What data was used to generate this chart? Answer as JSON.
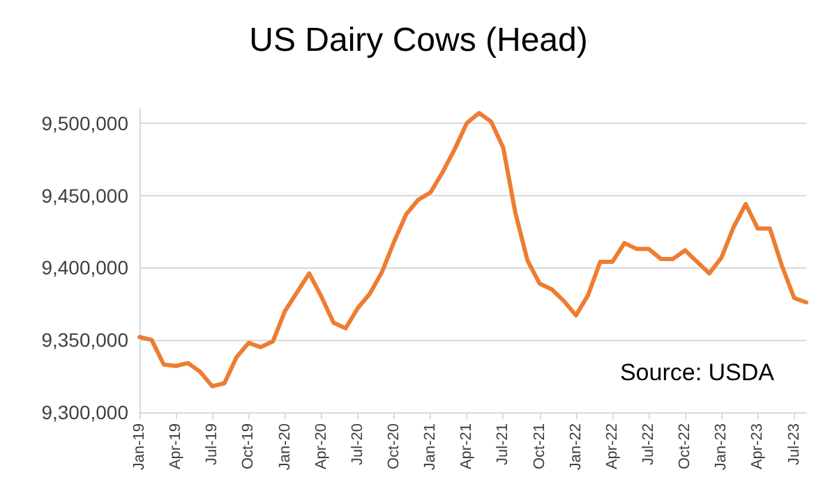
{
  "chart_data": {
    "type": "line",
    "title": "US Dairy Cows (Head)",
    "categories": [
      "Jan-19",
      null,
      null,
      "Apr-19",
      null,
      null,
      "Jul-19",
      null,
      null,
      "Oct-19",
      null,
      null,
      "Jan-20",
      null,
      null,
      "Apr-20",
      null,
      null,
      "Jul-20",
      null,
      null,
      "Oct-20",
      null,
      null,
      "Jan-21",
      null,
      null,
      "Apr-21",
      null,
      null,
      "Jul-21",
      null,
      null,
      "Oct-21",
      null,
      null,
      "Jan-22",
      null,
      null,
      "Apr-22",
      null,
      null,
      "Jul-22",
      null,
      null,
      "Oct-22",
      null,
      null,
      "Jan-23",
      null,
      null,
      "Apr-23",
      null,
      null,
      "Jul-23",
      null
    ],
    "series": [
      {
        "color": "#ed7d31",
        "values": [
          9352000,
          9350000,
          9333000,
          9332000,
          9334000,
          9328000,
          9318000,
          9320000,
          9338000,
          9348000,
          9345000,
          9349000,
          9370000,
          9383000,
          9396000,
          9380000,
          9362000,
          9358000,
          9372000,
          9382000,
          9397000,
          9418000,
          9437000,
          9447000,
          9452000,
          9466000,
          9482000,
          9500000,
          9507000,
          9501000,
          9483000,
          9438000,
          9405000,
          9389000,
          9385000,
          9377000,
          9367000,
          9381000,
          9404000,
          9404000,
          9417000,
          9413000,
          9413000,
          9406000,
          9406000,
          9412000,
          9404000,
          9396000,
          9407000,
          9428000,
          9444000,
          9427000,
          9427000,
          9401000,
          9379000,
          9376000
        ]
      }
    ],
    "ylim": [
      9300000,
      9510000
    ],
    "yticks": [
      {
        "value": 9300000,
        "label": "9,300,000"
      },
      {
        "value": 9350000,
        "label": "9,350,000"
      },
      {
        "value": 9400000,
        "label": "9,400,000"
      },
      {
        "value": 9450000,
        "label": "9,450,000"
      },
      {
        "value": 9500000,
        "label": "9,500,000"
      }
    ],
    "grid": "y",
    "marker": "none",
    "line_style": "solid",
    "annotations": [
      "Source: USDA"
    ]
  }
}
